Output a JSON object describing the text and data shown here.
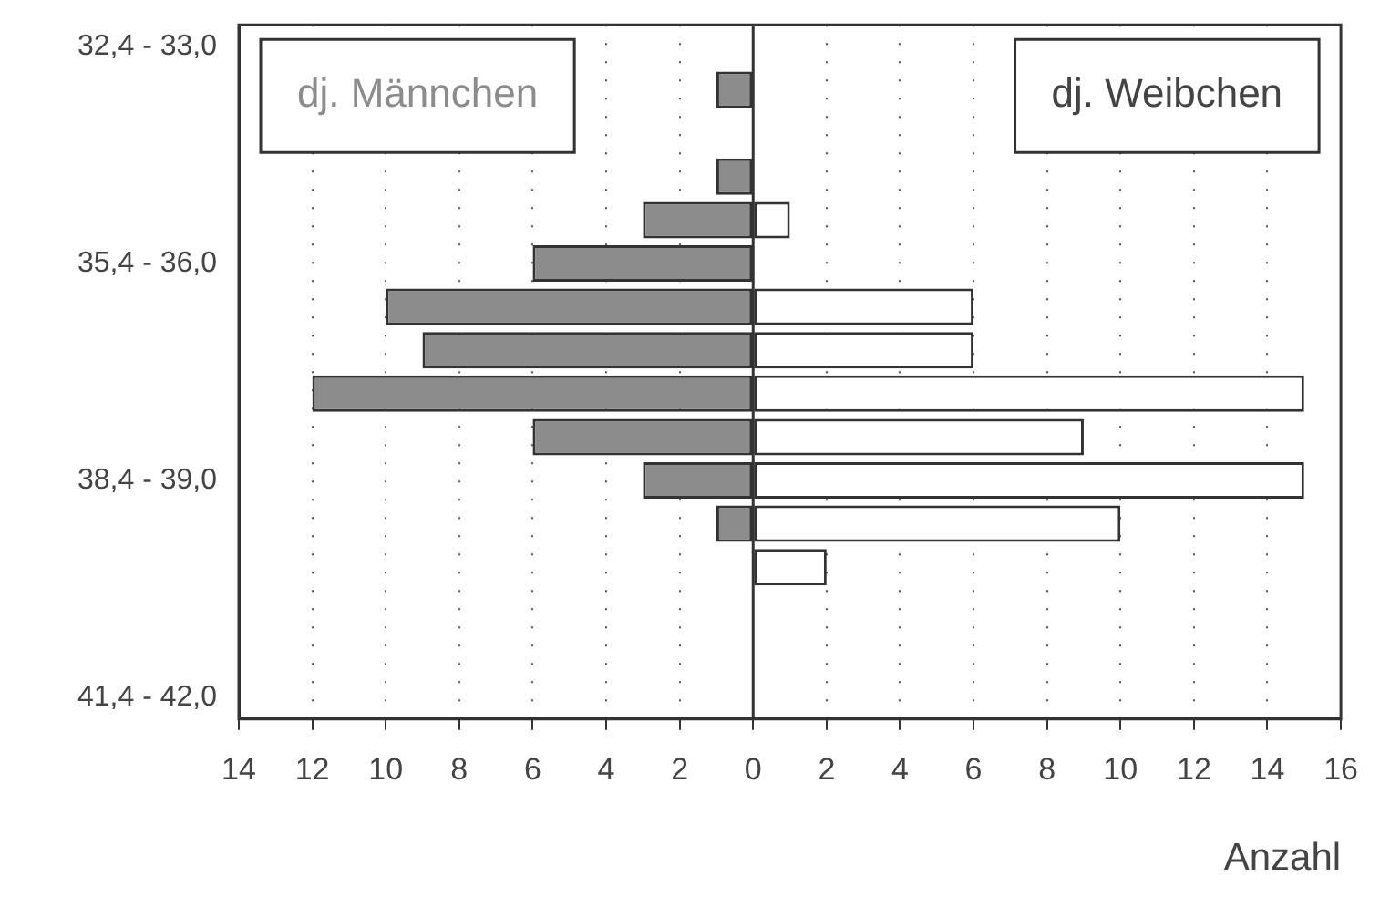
{
  "chart_data": {
    "type": "bar",
    "orientation": "horizontal",
    "xlabel": "Anzahl",
    "categories": [
      "32,4 - 33,0",
      null,
      null,
      null,
      null,
      "35,4 - 36,0",
      null,
      null,
      null,
      null,
      "38,4 - 39,0",
      null,
      null,
      null,
      null,
      "41,4 - 42,0"
    ],
    "series": [
      {
        "name": "dj. Männchen",
        "color": "#8c8c8c",
        "values": [
          null,
          -1,
          null,
          -1,
          -3,
          -6,
          -10,
          -9,
          -12,
          -6,
          -3,
          -1,
          null,
          null,
          null,
          null
        ]
      },
      {
        "name": "dj. Weibchen",
        "color": "#ffffff",
        "values": [
          null,
          null,
          null,
          null,
          1,
          null,
          6,
          6,
          15,
          9,
          15,
          10,
          2,
          null,
          null,
          null
        ]
      }
    ],
    "xlim": [
      -14,
      16
    ],
    "xticks": [
      {
        "value": -14,
        "label": "14"
      },
      {
        "value": -12,
        "label": "12"
      },
      {
        "value": -10,
        "label": "10"
      },
      {
        "value": -8,
        "label": "8"
      },
      {
        "value": -6,
        "label": "6"
      },
      {
        "value": -4,
        "label": "4"
      },
      {
        "value": -2,
        "label": "2"
      },
      0,
      2,
      4,
      6,
      8,
      10,
      12,
      14,
      16
    ],
    "grid": "x"
  }
}
